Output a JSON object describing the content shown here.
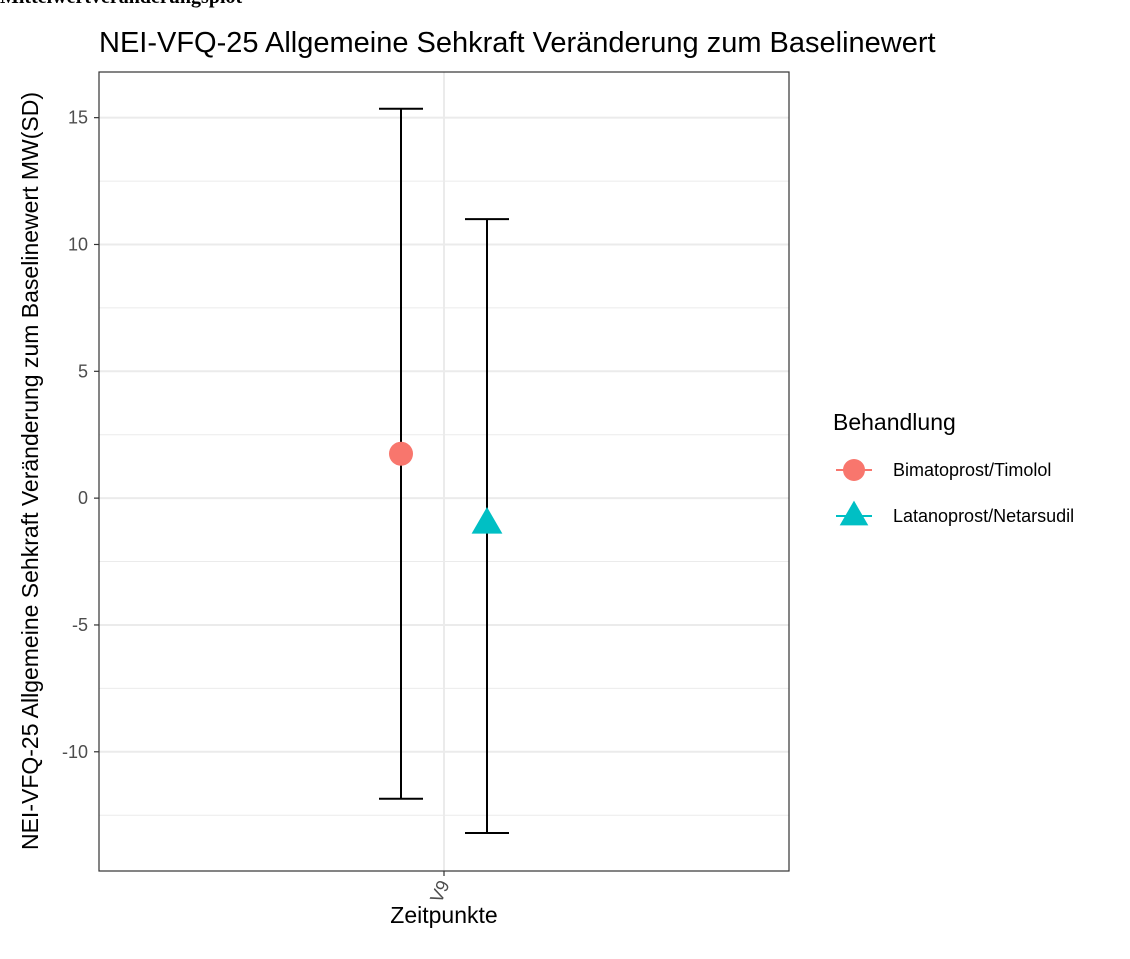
{
  "header_fragment": "Mittelwertveränderungsplot",
  "chart_data": {
    "type": "scatter",
    "title": "NEI-VFQ-25 Allgemeine Sehkraft Veränderung zum Baselinewert",
    "xlabel": "Zeitpunkte",
    "ylabel": "NEI-VFQ-25 Allgemeine Sehkraft Veränderung zum Baselinewert MW(SD)",
    "categories": [
      "V9"
    ],
    "ylim": [
      -14.7,
      16.8
    ],
    "yticks": [
      -10,
      -5,
      0,
      5,
      10,
      15
    ],
    "grid": true,
    "legend": {
      "title": "Behandlung",
      "position": "right"
    },
    "series": [
      {
        "name": "Bimatoprost/Timolol",
        "shape": "circle",
        "color": "#F8766D",
        "mean": 1.75,
        "lower": -11.85,
        "upper": 15.35
      },
      {
        "name": "Latanoprost/Netarsudil",
        "shape": "triangle",
        "color": "#00BFC4",
        "mean": -1.0,
        "lower": -13.2,
        "upper": 11.0
      }
    ]
  }
}
